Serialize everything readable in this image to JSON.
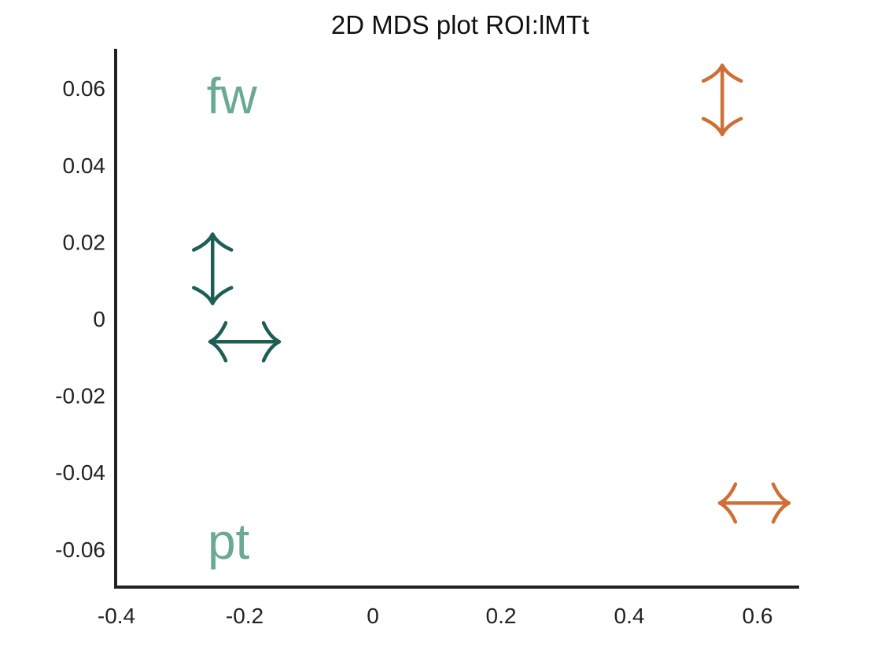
{
  "chart_data": {
    "type": "scatter",
    "title": "2D MDS plot ROI:lMTt",
    "xlabel": "",
    "ylabel": "",
    "xlim": [
      -0.4,
      0.65
    ],
    "ylim": [
      -0.07,
      0.07
    ],
    "xticks": [
      -0.4,
      -0.2,
      0,
      0.2,
      0.4,
      0.6
    ],
    "xtick_labels": [
      "-0.4",
      "-0.2",
      "0",
      "0.2",
      "0.4",
      "0.6"
    ],
    "yticks": [
      0.06,
      0.04,
      0.02,
      0,
      -0.02,
      -0.04,
      -0.06
    ],
    "ytick_labels": [
      "0.06",
      "0.04",
      "0.02",
      "0",
      "-0.02",
      "-0.04",
      "-0.06"
    ],
    "grid": false,
    "legend": "none",
    "points": [
      {
        "label": "fw",
        "marker": "text",
        "x": -0.22,
        "y": 0.058,
        "color": "#6aa994"
      },
      {
        "label": "pt",
        "marker": "text",
        "x": -0.225,
        "y": -0.058,
        "color": "#6aa994"
      },
      {
        "label": "",
        "marker": "vertical-arrow",
        "x": -0.25,
        "y": 0.013,
        "color": "#1d5e55"
      },
      {
        "label": "",
        "marker": "horizontal-arrow",
        "x": -0.2,
        "y": -0.006,
        "color": "#1d5e55"
      },
      {
        "label": "",
        "marker": "vertical-arrow",
        "x": 0.545,
        "y": 0.057,
        "color": "#cf6f35"
      },
      {
        "label": "",
        "marker": "horizontal-arrow",
        "x": 0.595,
        "y": -0.048,
        "color": "#cf6f35"
      }
    ],
    "axis_color": "#222222"
  }
}
